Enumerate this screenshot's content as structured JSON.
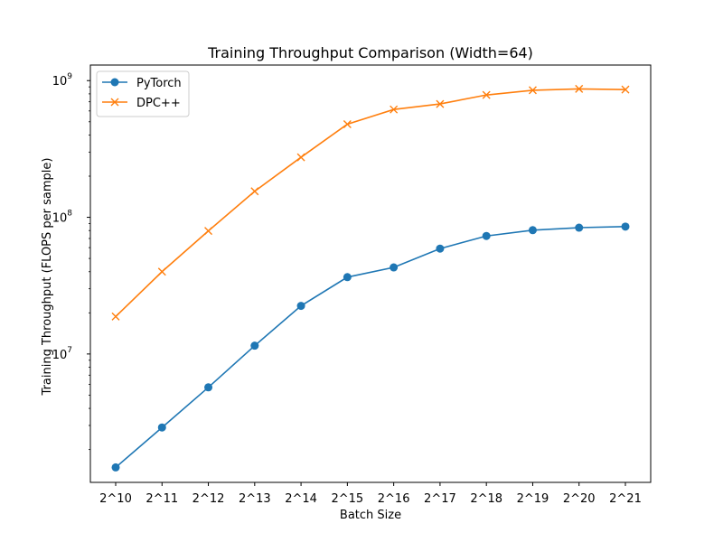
{
  "chart_data": {
    "type": "line",
    "title": "Training Throughput Comparison (Width=64)",
    "xlabel": "Batch Size",
    "ylabel": "Training Throughput (FLOPS per sample)",
    "y_scale": "log",
    "ylim": [
      1150000,
      1300000000
    ],
    "grid": false,
    "legend_position": "top-left",
    "categories": [
      "2^10",
      "2^11",
      "2^12",
      "2^13",
      "2^14",
      "2^15",
      "2^16",
      "2^17",
      "2^18",
      "2^19",
      "2^20",
      "2^21"
    ],
    "y_major_ticks": [
      {
        "value": 10000000,
        "base": "10",
        "exp": "7"
      },
      {
        "value": 100000000,
        "base": "10",
        "exp": "8"
      },
      {
        "value": 1000000000,
        "base": "10",
        "exp": "9"
      }
    ],
    "series": [
      {
        "name": "PyTorch",
        "color": "#1f77b4",
        "marker": "circle",
        "values": [
          1480000,
          2900000,
          5700000,
          11500000,
          22500000,
          36500000,
          43000000,
          59000000,
          73000000,
          80500000,
          84000000,
          85500000
        ]
      },
      {
        "name": "DPC++",
        "color": "#ff7f0e",
        "marker": "x",
        "values": [
          18800000,
          40000000,
          79500000,
          155000000,
          275000000,
          480000000,
          615000000,
          675000000,
          785000000,
          850000000,
          870000000,
          860000000
        ]
      }
    ]
  }
}
